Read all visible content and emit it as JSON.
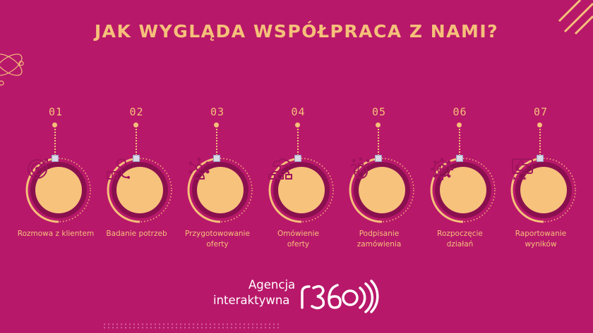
{
  "title": "JAK WYGLĄDA WSPÓŁPRACA Z NAMI?",
  "colors": {
    "background": "#b8186a",
    "accent": "#f5c07a",
    "circle_fill": "#f7c27c",
    "ring_dark": "#8a0f4f",
    "icon_stroke": "#a0135d"
  },
  "steps": [
    {
      "number": "01",
      "label_line1": "Rozmowa z klientem",
      "label_line2": "",
      "icon": "target-icon"
    },
    {
      "number": "02",
      "label_line1": "Badanie potrzeb",
      "label_line2": "",
      "icon": "lightbulb-book-icon"
    },
    {
      "number": "03",
      "label_line1": "Przygotowowanie",
      "label_line2": "oferty",
      "icon": "network-icon"
    },
    {
      "number": "04",
      "label_line1": "Omówienie",
      "label_line2": "oferty",
      "icon": "cloud-hierarchy-icon"
    },
    {
      "number": "05",
      "label_line1": "Podpisanie",
      "label_line2": "zamówienia",
      "icon": "global-team-icon"
    },
    {
      "number": "06",
      "label_line1": "Rozpoczęcie",
      "label_line2": "działań",
      "icon": "gear-globe-icon"
    },
    {
      "number": "07",
      "label_line1": "Raportowanie",
      "label_line2": "wyników",
      "icon": "thumbs-up-rating-icon"
    }
  ],
  "logo": {
    "line1": "Agencja",
    "line2": "interaktywna"
  }
}
